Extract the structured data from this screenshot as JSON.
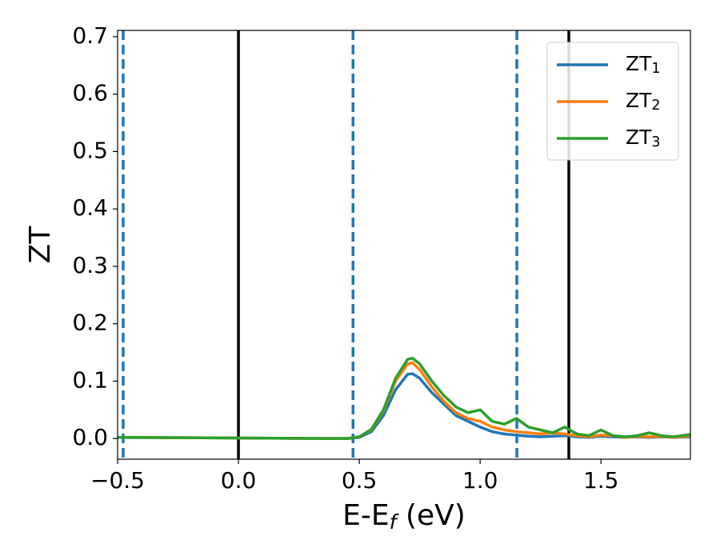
{
  "chart_data": {
    "type": "line",
    "x_label": "E-E_f (eV)",
    "y_label": "ZT",
    "x": [
      -0.5,
      0.4,
      0.45,
      0.5,
      0.55,
      0.6,
      0.65,
      0.7,
      0.72,
      0.75,
      0.8,
      0.85,
      0.9,
      0.95,
      1.0,
      1.05,
      1.1,
      1.15,
      1.2,
      1.25,
      1.3,
      1.35,
      1.4,
      1.45,
      1.5,
      1.55,
      1.6,
      1.65,
      1.7,
      1.75,
      1.8,
      1.87
    ],
    "series": [
      {
        "name": "ZT_1",
        "color": "#1f77b4",
        "values": [
          0.002,
          0,
          0,
          0.002,
          0.012,
          0.04,
          0.085,
          0.112,
          0.113,
          0.105,
          0.08,
          0.06,
          0.04,
          0.03,
          0.02,
          0.012,
          0.008,
          0.006,
          0.004,
          0.003,
          0.004,
          0.005,
          0.003,
          0.002,
          0.004,
          0.003,
          0.002,
          0.003,
          0.002,
          0.003,
          0.002,
          0.003
        ]
      },
      {
        "name": "ZT_2",
        "color": "#ff7f0e",
        "values": [
          0.002,
          0,
          0,
          0.003,
          0.015,
          0.048,
          0.1,
          0.13,
          0.132,
          0.12,
          0.09,
          0.065,
          0.045,
          0.035,
          0.03,
          0.02,
          0.015,
          0.012,
          0.01,
          0.008,
          0.01,
          0.008,
          0.005,
          0.003,
          0.006,
          0.005,
          0.002,
          0.004,
          0.003,
          0.004,
          0.002,
          0.005
        ]
      },
      {
        "name": "ZT_3",
        "color": "#2ca02c",
        "values": [
          0.002,
          0,
          0,
          0.003,
          0.016,
          0.05,
          0.105,
          0.138,
          0.14,
          0.13,
          0.1,
          0.075,
          0.055,
          0.045,
          0.05,
          0.03,
          0.025,
          0.035,
          0.02,
          0.015,
          0.01,
          0.02,
          0.008,
          0.005,
          0.015,
          0.005,
          0.003,
          0.005,
          0.01,
          0.005,
          0.003,
          0.007
        ]
      }
    ],
    "vlines": [
      {
        "x": -0.477,
        "color": "#1f77b4",
        "style": "dashed"
      },
      {
        "x": 0,
        "color": "#000000",
        "style": "solid"
      },
      {
        "x": 0.474,
        "color": "#1f77b4",
        "style": "dashed"
      },
      {
        "x": 1.152,
        "color": "#1f77b4",
        "style": "dashed"
      },
      {
        "x": 1.367,
        "color": "#000000",
        "style": "solid"
      }
    ],
    "xlim": [
      -0.5,
      1.87
    ],
    "ylim": [
      -0.036,
      0.711
    ],
    "xticks": [
      {
        "value": -0.5,
        "label": "−0.5"
      },
      {
        "value": 0,
        "label": "0.0"
      },
      {
        "value": 0.5,
        "label": "0.5"
      },
      {
        "value": 1,
        "label": "1.0"
      },
      {
        "value": 1.5,
        "label": "1.5"
      }
    ],
    "yticks": [
      {
        "value": 0,
        "label": "0.0"
      },
      {
        "value": 0.1,
        "label": "0.1"
      },
      {
        "value": 0.2,
        "label": "0.2"
      },
      {
        "value": 0.3,
        "label": "0.3"
      },
      {
        "value": 0.4,
        "label": "0.4"
      },
      {
        "value": 0.5,
        "label": "0.5"
      },
      {
        "value": 0.6,
        "label": "0.6"
      },
      {
        "value": 0.7,
        "label": "0.7"
      }
    ],
    "legend": "upper right",
    "grid": false
  }
}
